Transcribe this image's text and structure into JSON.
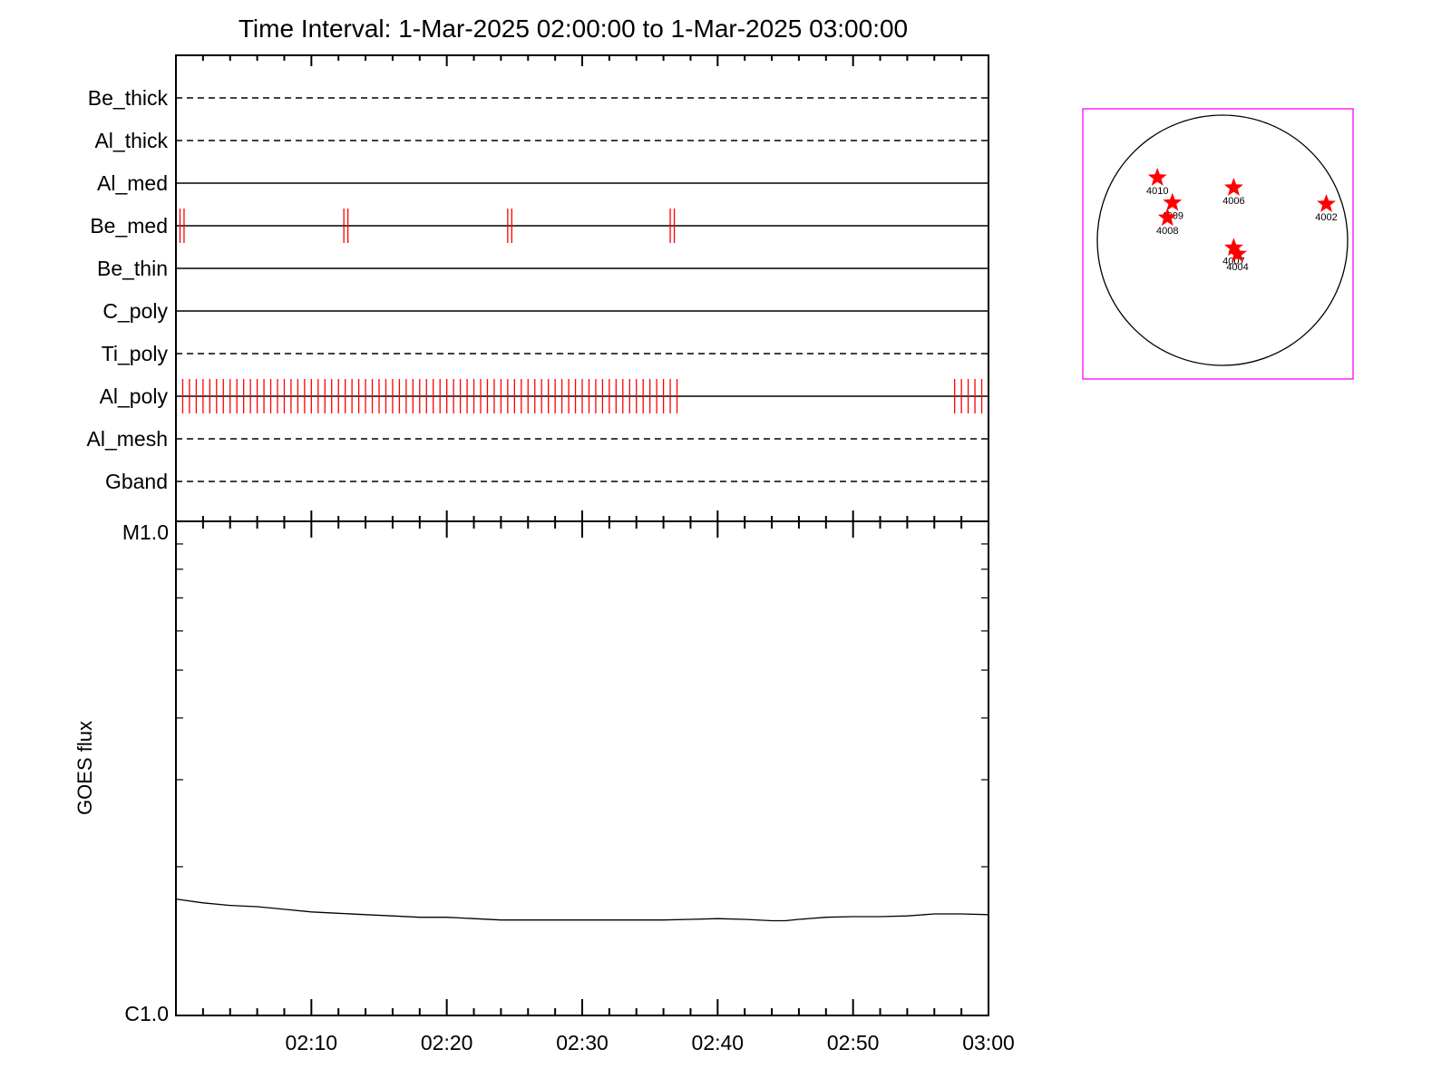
{
  "title": "Time Interval:  1-Mar-2025 02:00:00 to  1-Mar-2025 03:00:00",
  "colors": {
    "axis": "#000000",
    "marker": "#ff0000",
    "map_frame": "#ff00ff",
    "flux_line": "#000000"
  },
  "chart_data": [
    {
      "type": "timeline",
      "x_range": [
        "02:00",
        "03:00"
      ],
      "channels": [
        {
          "name": "Be_thick",
          "style": "dashed",
          "marks": []
        },
        {
          "name": "Al_thick",
          "style": "dashed",
          "marks": []
        },
        {
          "name": "Al_med",
          "style": "solid",
          "marks": []
        },
        {
          "name": "Be_med",
          "style": "solid",
          "marks": [
            0.3,
            0.6,
            12.4,
            12.7,
            24.5,
            24.8,
            36.5,
            36.8
          ]
        },
        {
          "name": "Be_thin",
          "style": "solid",
          "marks": []
        },
        {
          "name": "C_poly",
          "style": "solid",
          "marks": []
        },
        {
          "name": "Ti_poly",
          "style": "dashed",
          "marks": []
        },
        {
          "name": "Al_poly",
          "style": "solid",
          "mark_runs": [
            {
              "start": 0.5,
              "end": 37.0,
              "step": 0.5
            }
          ],
          "marks": [
            57.5,
            58.0,
            58.5,
            59.0,
            59.5
          ]
        },
        {
          "name": "Al_mesh",
          "style": "dashed",
          "marks": []
        },
        {
          "name": "Gband",
          "style": "dashed",
          "marks": []
        }
      ]
    },
    {
      "type": "line",
      "ylabel": "GOES flux",
      "y_scale": "log",
      "ylim": [
        1e-06,
        1e-05
      ],
      "y_tick_labels": [
        "C1.0",
        "M1.0"
      ],
      "x_tick_labels": [
        "02:10",
        "02:20",
        "02:30",
        "02:40",
        "02:50",
        "03:00"
      ],
      "x_minutes": [
        0,
        2,
        4,
        6,
        8,
        10,
        12,
        14,
        16,
        18,
        20,
        22,
        24,
        26,
        28,
        30,
        32,
        34,
        36,
        38,
        40,
        42,
        44,
        45,
        46,
        48,
        50,
        52,
        54,
        56,
        58,
        60
      ],
      "y": [
        1.72e-06,
        1.69e-06,
        1.67e-06,
        1.66e-06,
        1.64e-06,
        1.62e-06,
        1.61e-06,
        1.6e-06,
        1.59e-06,
        1.58e-06,
        1.58e-06,
        1.57e-06,
        1.56e-06,
        1.56e-06,
        1.56e-06,
        1.56e-06,
        1.56e-06,
        1.56e-06,
        1.56e-06,
        1.565e-06,
        1.57e-06,
        1.565e-06,
        1.555e-06,
        1.555e-06,
        1.565e-06,
        1.58e-06,
        1.585e-06,
        1.585e-06,
        1.59e-06,
        1.605e-06,
        1.605e-06,
        1.6e-06
      ]
    },
    {
      "type": "scatter",
      "description_type": "solar-disk-map",
      "points": [
        {
          "label": "4010",
          "x": -0.52,
          "y": 0.5
        },
        {
          "label": "4009",
          "x": -0.4,
          "y": 0.3
        },
        {
          "label": "4008",
          "x": -0.44,
          "y": 0.18
        },
        {
          "label": "4006",
          "x": 0.09,
          "y": 0.42
        },
        {
          "label": "4002",
          "x": 0.83,
          "y": 0.29
        },
        {
          "label": "4007",
          "x": 0.09,
          "y": -0.06
        },
        {
          "label": "4004",
          "x": 0.12,
          "y": -0.11
        }
      ]
    }
  ]
}
